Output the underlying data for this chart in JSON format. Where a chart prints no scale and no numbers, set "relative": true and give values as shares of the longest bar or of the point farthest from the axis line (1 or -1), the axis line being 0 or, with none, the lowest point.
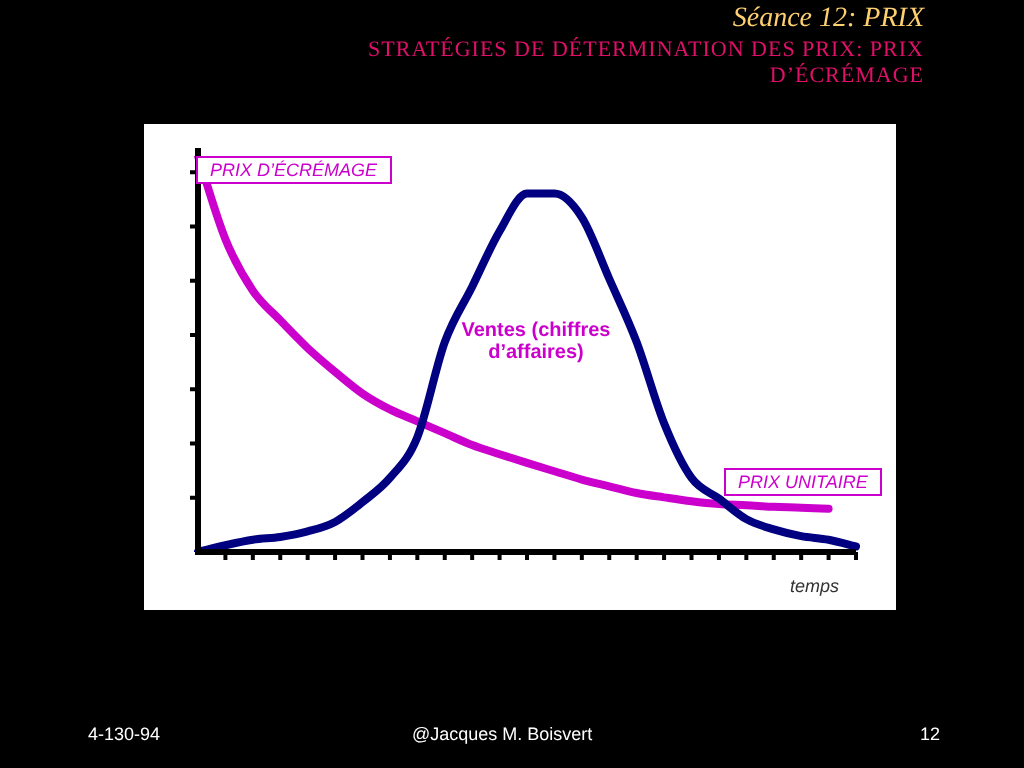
{
  "chart_data": {
    "type": "line",
    "title": "Séance 12: PRIX",
    "subtitle": "STRATÉGIES DE DÉTERMINATION DES PRIX: PRIX D’ÉCRÉMAGE",
    "xlabel": "temps",
    "relative": true,
    "grid": false,
    "legend": false,
    "marker": "none",
    "line_style": "solid",
    "categories": [
      null,
      null,
      null,
      null,
      null,
      null,
      null,
      null,
      null,
      null,
      null,
      null,
      null,
      null,
      null,
      null,
      null,
      null,
      null,
      null,
      null,
      null,
      null,
      null,
      null
    ],
    "series": [
      {
        "color": "#000080",
        "values": [
          0,
          0.017,
          0.031,
          0.038,
          0.052,
          0.076,
          0.126,
          0.187,
          0.29,
          0.53,
          0.67,
          0.81,
          0.905,
          0.905,
          0.845,
          0.69,
          0.53,
          0.325,
          0.187,
          0.135,
          0.083,
          0.057,
          0.04,
          0.031,
          0.014
        ]
      },
      {
        "color": "#cc00cc",
        "values": [
          1,
          0.79,
          0.66,
          0.585,
          0.515,
          0.455,
          0.4,
          0.36,
          0.33,
          0.3,
          0.27,
          0.247,
          0.225,
          0.204,
          0.183,
          0.166,
          0.149,
          0.138,
          0.128,
          0.121,
          0.118,
          0.114,
          0.112,
          0.109,
          null
        ]
      }
    ],
    "annotations": [
      "PRIX D’ÉCRÉMAGE",
      "PRIX UNITAIRE",
      "Ventes (chiffres d’affaires)",
      "4-130-94",
      "@Jacques M. Boisvert",
      "12"
    ]
  }
}
